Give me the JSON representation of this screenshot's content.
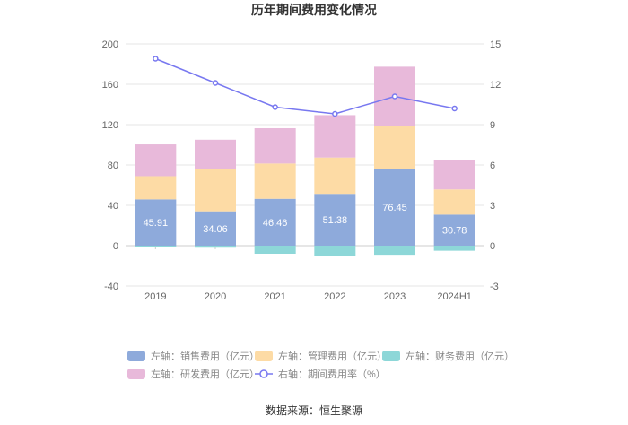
{
  "chart_data": {
    "type": "bar",
    "title": "历年期间费用变化情况",
    "categories": [
      "2019",
      "2020",
      "2021",
      "2022",
      "2023",
      "2024H1"
    ],
    "series": [
      {
        "name": "左轴：销售费用（亿元）",
        "kind": "bar",
        "axis": "left",
        "color": "#8eaadb",
        "values": [
          45.91,
          34.06,
          46.46,
          51.38,
          76.45,
          30.78
        ],
        "labels_shown": true
      },
      {
        "name": "左轴：管理费用（亿元）",
        "kind": "bar",
        "axis": "left",
        "color": "#fddba5",
        "values": [
          23,
          42,
          35,
          36,
          42,
          25
        ]
      },
      {
        "name": "左轴：财务费用（亿元）",
        "kind": "bar",
        "axis": "left",
        "color": "#8dd7d8",
        "values": [
          -1.5,
          -2,
          -8,
          -10,
          -9,
          -5
        ]
      },
      {
        "name": "左轴：研发费用（亿元）",
        "kind": "bar",
        "axis": "left",
        "color": "#e8b9da",
        "values": [
          31.5,
          29,
          35,
          42,
          59,
          29
        ]
      },
      {
        "name": "右轴：期间费用率（%）",
        "kind": "line",
        "axis": "right",
        "color": "#7878f0",
        "values": [
          13.9,
          12.1,
          10.3,
          9.8,
          11.1,
          10.2
        ]
      }
    ],
    "left_axis": {
      "ylim": [
        -40,
        200
      ],
      "ticks": [
        "-40",
        "0",
        "40",
        "80",
        "120",
        "160",
        "200"
      ]
    },
    "right_axis": {
      "ylim": [
        -3,
        15
      ],
      "ticks": [
        "-3",
        "0",
        "3",
        "6",
        "9",
        "12",
        "15"
      ]
    },
    "legend_position": "bottom",
    "grid": true
  },
  "source": "数据来源：恒生聚源"
}
